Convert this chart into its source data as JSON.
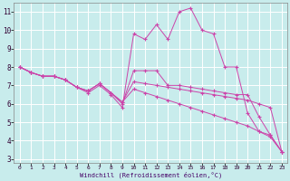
{
  "background_color": "#c8ecec",
  "line_color": "#cc44aa",
  "grid_color": "#ffffff",
  "xlabel": "Windchill (Refroidissement éolien,°C)",
  "ylim": [
    2.8,
    11.5
  ],
  "xlim": [
    -0.5,
    23.5
  ],
  "yticks": [
    3,
    4,
    5,
    6,
    7,
    8,
    9,
    10,
    11
  ],
  "xticks": [
    0,
    1,
    2,
    3,
    4,
    5,
    6,
    7,
    8,
    9,
    10,
    11,
    12,
    13,
    14,
    15,
    16,
    17,
    18,
    19,
    20,
    21,
    22,
    23
  ],
  "series": [
    {
      "x": [
        0,
        1,
        2,
        3,
        4,
        5,
        6,
        7,
        8,
        9,
        10,
        11,
        12,
        13,
        14,
        15,
        16,
        17,
        18,
        19,
        20,
        21,
        22,
        23
      ],
      "y": [
        8.0,
        7.7,
        7.5,
        7.5,
        7.3,
        6.9,
        6.6,
        7.0,
        6.5,
        5.8,
        9.8,
        9.5,
        10.3,
        9.5,
        11.0,
        11.2,
        10.0,
        9.8,
        8.0,
        8.0,
        5.5,
        4.5,
        4.3,
        3.4
      ]
    },
    {
      "x": [
        0,
        1,
        2,
        3,
        4,
        5,
        6,
        7,
        8,
        9,
        10,
        11,
        12,
        13,
        14,
        15,
        16,
        17,
        18,
        19,
        20,
        21,
        22,
        23
      ],
      "y": [
        8.0,
        7.7,
        7.5,
        7.5,
        7.3,
        6.9,
        6.7,
        7.1,
        6.6,
        6.0,
        7.8,
        7.8,
        7.8,
        7.0,
        7.0,
        6.9,
        6.8,
        6.7,
        6.6,
        6.5,
        6.5,
        5.3,
        4.3,
        3.4
      ]
    },
    {
      "x": [
        0,
        1,
        2,
        3,
        4,
        5,
        6,
        7,
        8,
        9,
        10,
        11,
        12,
        13,
        14,
        15,
        16,
        17,
        18,
        19,
        20,
        21,
        22,
        23
      ],
      "y": [
        8.0,
        7.7,
        7.5,
        7.5,
        7.3,
        6.9,
        6.7,
        7.1,
        6.6,
        6.1,
        7.2,
        7.1,
        7.0,
        6.9,
        6.8,
        6.7,
        6.6,
        6.5,
        6.4,
        6.3,
        6.2,
        6.0,
        5.8,
        3.4
      ]
    },
    {
      "x": [
        0,
        1,
        2,
        3,
        4,
        5,
        6,
        7,
        8,
        9,
        10,
        11,
        12,
        13,
        14,
        15,
        16,
        17,
        18,
        19,
        20,
        21,
        22,
        23
      ],
      "y": [
        8.0,
        7.7,
        7.5,
        7.5,
        7.3,
        6.9,
        6.7,
        7.1,
        6.6,
        6.1,
        6.8,
        6.6,
        6.4,
        6.2,
        6.0,
        5.8,
        5.6,
        5.4,
        5.2,
        5.0,
        4.8,
        4.5,
        4.2,
        3.4
      ]
    }
  ]
}
